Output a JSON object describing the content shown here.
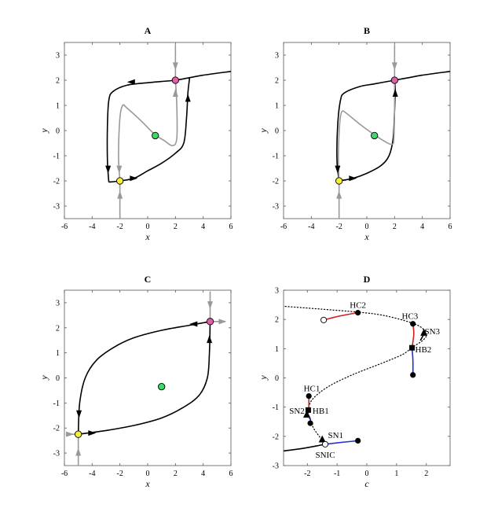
{
  "chart_data": [
    {
      "id": "A",
      "type": "line",
      "title": "A",
      "xlabel": "x",
      "ylabel": "y",
      "xlim": [
        -6,
        6
      ],
      "ylim": [
        -3.5,
        3.5
      ],
      "xticks": [
        "-6",
        "-4",
        "-2",
        "0",
        "2",
        "4",
        "6"
      ],
      "yticks": [
        "-3",
        "-2",
        "-1",
        "0",
        "1",
        "2",
        "3"
      ],
      "series": [
        {
          "color": "#000000",
          "points": [
            [
              -2.8,
              -2.05
            ],
            [
              -2.9,
              -1.2
            ],
            [
              -2.9,
              0.2
            ],
            [
              -2.8,
              1.2
            ],
            [
              -2.5,
              1.55
            ],
            [
              -1.5,
              1.8
            ],
            [
              0,
              1.9
            ],
            [
              1,
              1.95
            ],
            [
              2,
              2.0
            ],
            [
              3,
              2.1
            ],
            [
              4,
              2.2
            ],
            [
              6,
              2.35
            ]
          ]
        },
        {
          "color": "#000000",
          "points": [
            [
              -2.8,
              -2.05
            ],
            [
              -2.0,
              -2.0
            ],
            [
              -1,
              -1.9
            ],
            [
              0,
              -1.6
            ],
            [
              1,
              -1.3
            ],
            [
              2,
              -0.9
            ],
            [
              2.6,
              -0.5
            ],
            [
              2.8,
              0.5
            ],
            [
              2.9,
              1.5
            ],
            [
              3.0,
              2.0
            ],
            [
              3.0,
              2.1
            ]
          ]
        },
        {
          "color": "#999999",
          "points": [
            [
              -2.0,
              -2.0
            ],
            [
              -2.1,
              -1.0
            ],
            [
              -2.0,
              0.5
            ],
            [
              -1.8,
              1.0
            ],
            [
              -1.5,
              0.9
            ],
            [
              -0.5,
              0.4
            ],
            [
              0.5,
              -0.15
            ],
            [
              1.2,
              -0.4
            ],
            [
              1.8,
              -0.6
            ],
            [
              2.1,
              -0.3
            ],
            [
              2.1,
              1.0
            ],
            [
              2.0,
              2.0
            ]
          ]
        },
        {
          "color": "#999999",
          "points": [
            [
              2.0,
              3.4
            ],
            [
              2.0,
              2.0
            ]
          ]
        },
        {
          "color": "#999999",
          "points": [
            [
              -2.0,
              -3.5
            ],
            [
              -2.0,
              -2.0
            ]
          ]
        }
      ],
      "arrows": [
        {
          "x": -1.2,
          "y": 1.93,
          "dir": "left",
          "color": "#000000"
        },
        {
          "x": -2.85,
          "y": -1.55,
          "dir": "down",
          "color": "#000000"
        },
        {
          "x": -1.0,
          "y": -1.9,
          "dir": "right",
          "color": "#000000"
        },
        {
          "x": 2.9,
          "y": 1.3,
          "dir": "up",
          "color": "#000000"
        },
        {
          "x": -2.05,
          "y": -1.55,
          "dir": "down",
          "color": "#999999"
        },
        {
          "x": 2.0,
          "y": 1.5,
          "dir": "up",
          "color": "#999999"
        },
        {
          "x": 2.0,
          "y": 2.55,
          "dir": "down",
          "color": "#999999"
        },
        {
          "x": -2.0,
          "y": -2.55,
          "dir": "up",
          "color": "#999999"
        }
      ],
      "points": [
        {
          "x": 2.0,
          "y": 2.0,
          "color": "#e060a8"
        },
        {
          "x": -2.0,
          "y": -2.0,
          "color": "#f5ee3a"
        },
        {
          "x": 0.55,
          "y": -0.2,
          "color": "#3cd86a"
        }
      ]
    },
    {
      "id": "B",
      "type": "line",
      "title": "B",
      "xlabel": "x",
      "ylabel": "y",
      "xlim": [
        -6,
        6
      ],
      "ylim": [
        -3.5,
        3.5
      ],
      "xticks": [
        "-6",
        "-4",
        "-2",
        "0",
        "2",
        "4",
        "6"
      ],
      "yticks": [
        "-3",
        "-2",
        "-1",
        "0",
        "1",
        "2",
        "3"
      ],
      "series": [
        {
          "color": "#000000",
          "points": [
            [
              -2.0,
              -2.0
            ],
            [
              -2.15,
              -1.2
            ],
            [
              -2.1,
              0.2
            ],
            [
              -1.9,
              1.2
            ],
            [
              -1.6,
              1.5
            ],
            [
              -0.5,
              1.75
            ],
            [
              0.5,
              1.85
            ],
            [
              2.0,
              2.0
            ],
            [
              3,
              2.1
            ],
            [
              4,
              2.2
            ],
            [
              6,
              2.35
            ]
          ]
        },
        {
          "color": "#000000",
          "points": [
            [
              -2.0,
              -2.0
            ],
            [
              -1,
              -1.9
            ],
            [
              0,
              -1.7
            ],
            [
              1,
              -1.4
            ],
            [
              1.6,
              -1.0
            ],
            [
              1.9,
              -0.3
            ],
            [
              2.0,
              0.8
            ],
            [
              2.05,
              1.6
            ],
            [
              2.0,
              2.0
            ]
          ]
        },
        {
          "color": "#999999",
          "points": [
            [
              -2.0,
              -2.0
            ],
            [
              -2.05,
              -1.0
            ],
            [
              -1.95,
              0.3
            ],
            [
              -1.8,
              0.75
            ],
            [
              -1.5,
              0.7
            ],
            [
              -0.5,
              0.25
            ],
            [
              0.5,
              -0.15
            ],
            [
              1.2,
              -0.4
            ],
            [
              1.8,
              -0.55
            ],
            [
              1.95,
              -0.3
            ],
            [
              2.0,
              1.0
            ],
            [
              2.0,
              2.0
            ]
          ]
        },
        {
          "color": "#999999",
          "points": [
            [
              2.0,
              3.4
            ],
            [
              2.0,
              2.0
            ]
          ]
        },
        {
          "color": "#999999",
          "points": [
            [
              -2.0,
              -3.5
            ],
            [
              -2.0,
              -2.0
            ]
          ]
        }
      ],
      "arrows": [
        {
          "x": -2.1,
          "y": -1.55,
          "dir": "down",
          "color": "#000000"
        },
        {
          "x": -1.0,
          "y": -1.9,
          "dir": "right",
          "color": "#000000"
        },
        {
          "x": 2.05,
          "y": 1.5,
          "dir": "up",
          "color": "#000000"
        },
        {
          "x": 2.0,
          "y": 2.55,
          "dir": "down",
          "color": "#999999"
        },
        {
          "x": -2.0,
          "y": -2.55,
          "dir": "up",
          "color": "#999999"
        }
      ],
      "points": [
        {
          "x": 2.0,
          "y": 2.0,
          "color": "#e060a8"
        },
        {
          "x": -2.0,
          "y": -2.0,
          "color": "#f5ee3a"
        },
        {
          "x": 0.55,
          "y": -0.2,
          "color": "#3cd86a"
        }
      ]
    },
    {
      "id": "C",
      "type": "line",
      "title": "C",
      "xlabel": "x",
      "ylabel": "y",
      "xlim": [
        -6,
        6
      ],
      "ylim": [
        -3.5,
        3.5
      ],
      "xticks": [
        "-6",
        "-4",
        "-2",
        "0",
        "2",
        "4",
        "6"
      ],
      "yticks": [
        "-3",
        "-2",
        "-1",
        "0",
        "1",
        "2",
        "3"
      ],
      "series": [
        {
          "color": "#000000",
          "points": [
            [
              4.5,
              2.25
            ],
            [
              3,
              2.1
            ],
            [
              1,
              1.9
            ],
            [
              -1,
              1.6
            ],
            [
              -2.5,
              1.2
            ],
            [
              -3.7,
              0.7
            ],
            [
              -4.5,
              0
            ],
            [
              -4.9,
              -1.0
            ],
            [
              -5.0,
              -2.25
            ]
          ]
        },
        {
          "color": "#000000",
          "points": [
            [
              -5.0,
              -2.25
            ],
            [
              -3,
              -2.1
            ],
            [
              -1,
              -1.9
            ],
            [
              1,
              -1.6
            ],
            [
              2.5,
              -1.2
            ],
            [
              3.7,
              -0.7
            ],
            [
              4.3,
              0
            ],
            [
              4.45,
              1.0
            ],
            [
              4.5,
              2.25
            ]
          ]
        },
        {
          "color": "#999999",
          "points": [
            [
              4.5,
              3.45
            ],
            [
              4.5,
              2.25
            ]
          ]
        },
        {
          "color": "#999999",
          "points": [
            [
              4.5,
              2.25
            ],
            [
              5.6,
              2.25
            ]
          ]
        },
        {
          "color": "#999999",
          "points": [
            [
              -5.0,
              -3.5
            ],
            [
              -5.0,
              -2.25
            ]
          ]
        },
        {
          "color": "#999999",
          "points": [
            [
              -5.9,
              -2.25
            ],
            [
              -5.0,
              -2.25
            ]
          ]
        }
      ],
      "arrows": [
        {
          "x": 3.3,
          "y": 2.15,
          "dir": "left",
          "color": "#000000"
        },
        {
          "x": -4.95,
          "y": -1.45,
          "dir": "down",
          "color": "#000000"
        },
        {
          "x": -4.0,
          "y": -2.2,
          "dir": "right",
          "color": "#000000"
        },
        {
          "x": 4.45,
          "y": 1.55,
          "dir": "up",
          "color": "#000000"
        },
        {
          "x": 4.5,
          "y": 2.9,
          "dir": "down",
          "color": "#999999"
        },
        {
          "x": 5.4,
          "y": 2.25,
          "dir": "right",
          "color": "#999999"
        },
        {
          "x": -5.0,
          "y": -2.95,
          "dir": "up",
          "color": "#999999"
        },
        {
          "x": -5.6,
          "y": -2.25,
          "dir": "right",
          "color": "#999999"
        }
      ],
      "points": [
        {
          "x": 4.5,
          "y": 2.25,
          "color": "#e060a8"
        },
        {
          "x": -5.0,
          "y": -2.25,
          "color": "#f5ee3a"
        },
        {
          "x": 1.0,
          "y": -0.35,
          "color": "#3cd86a"
        }
      ]
    },
    {
      "id": "D",
      "type": "line",
      "title": "D",
      "xlabel": "c",
      "ylabel": "y",
      "xlim": [
        -2.8,
        2.8
      ],
      "ylim": [
        -3,
        3
      ],
      "xticks": [
        "-2",
        "-1",
        "0",
        "1",
        "2"
      ],
      "yticks": [
        "-3",
        "-2",
        "-1",
        "0",
        "1",
        "2",
        "3"
      ],
      "xtick_values": [
        -2,
        -1,
        0,
        1,
        2
      ],
      "series": [
        {
          "color": "#000000",
          "style": "solid",
          "points": [
            [
              -2.8,
              -2.5
            ],
            [
              -2.2,
              -2.42
            ],
            [
              -1.7,
              -2.33
            ],
            [
              -1.4,
              -2.27
            ]
          ]
        },
        {
          "color": "#000000",
          "style": "dotted",
          "points": [
            [
              -1.4,
              -2.27
            ],
            [
              -1.6,
              -2.0
            ],
            [
              -1.8,
              -1.7
            ],
            [
              -1.95,
              -1.3
            ],
            [
              -1.95,
              -1.0
            ],
            [
              -1.8,
              -0.7
            ],
            [
              -1.3,
              -0.3
            ],
            [
              -0.5,
              0.1
            ],
            [
              0.5,
              0.5
            ],
            [
              1.2,
              0.8
            ],
            [
              1.5,
              1.03
            ]
          ]
        },
        {
          "color": "#000000",
          "style": "dotted",
          "points": [
            [
              1.5,
              1.03
            ],
            [
              1.9,
              1.3
            ],
            [
              2.0,
              1.5
            ],
            [
              1.8,
              1.75
            ],
            [
              1.3,
              1.95
            ],
            [
              0.5,
              2.15
            ],
            [
              -0.3,
              2.25
            ],
            [
              -1.5,
              2.35
            ],
            [
              -2.8,
              2.45
            ]
          ]
        },
        {
          "color": "#000000",
          "style": "solid",
          "points": [
            [
              1.8,
              1.28
            ],
            [
              1.95,
              1.55
            ]
          ]
        },
        {
          "color": "#d42020",
          "style": "solid",
          "points": [
            [
              -1.45,
              1.98
            ],
            [
              -0.9,
              2.12
            ],
            [
              -0.3,
              2.23
            ]
          ]
        },
        {
          "color": "#d42020",
          "style": "solid",
          "points": [
            [
              1.55,
              1.85
            ],
            [
              1.58,
              1.5
            ],
            [
              1.52,
              1.03
            ]
          ]
        },
        {
          "color": "#d42020",
          "style": "solid",
          "points": [
            [
              -1.95,
              -0.62
            ],
            [
              -1.95,
              -1.0
            ],
            [
              -1.98,
              -1.2
            ]
          ]
        },
        {
          "color": "#2030d0",
          "style": "solid",
          "points": [
            [
              1.52,
              1.03
            ],
            [
              1.55,
              0.6
            ],
            [
              1.55,
              0.1
            ]
          ]
        },
        {
          "color": "#2030d0",
          "style": "solid",
          "points": [
            [
              -2.0,
              -1.22
            ],
            [
              -1.9,
              -1.4
            ],
            [
              -1.9,
              -1.55
            ]
          ]
        },
        {
          "color": "#2030d0",
          "style": "solid",
          "points": [
            [
              -1.4,
              -2.27
            ],
            [
              -0.8,
              -2.2
            ],
            [
              -0.3,
              -2.15
            ]
          ]
        }
      ],
      "markers": [
        {
          "x": -0.3,
          "y": 2.23,
          "shape": "filled-circle"
        },
        {
          "x": -1.45,
          "y": 1.98,
          "shape": "open-circle"
        },
        {
          "x": 1.55,
          "y": 1.85,
          "shape": "filled-circle"
        },
        {
          "x": 1.52,
          "y": 1.03,
          "shape": "square"
        },
        {
          "x": 1.55,
          "y": 0.1,
          "shape": "filled-circle"
        },
        {
          "x": 1.92,
          "y": 1.55,
          "shape": "triangle"
        },
        {
          "x": -1.95,
          "y": -0.62,
          "shape": "filled-circle"
        },
        {
          "x": -1.97,
          "y": -1.1,
          "shape": "square"
        },
        {
          "x": -2.02,
          "y": -1.25,
          "shape": "triangle"
        },
        {
          "x": -1.9,
          "y": -1.55,
          "shape": "filled-circle"
        },
        {
          "x": -1.5,
          "y": -2.1,
          "shape": "triangle"
        },
        {
          "x": -1.4,
          "y": -2.27,
          "shape": "open-circle"
        },
        {
          "x": -0.3,
          "y": -2.15,
          "shape": "filled-circle"
        }
      ],
      "annotations": [
        {
          "text": "HC2",
          "x": -0.3,
          "y": 2.5
        },
        {
          "text": "HC3",
          "x": 1.45,
          "y": 2.12
        },
        {
          "text": "SN3",
          "x": 2.2,
          "y": 1.6
        },
        {
          "text": "HB2",
          "x": 1.9,
          "y": 0.98
        },
        {
          "text": "HC1",
          "x": -1.85,
          "y": -0.35
        },
        {
          "text": "SN2",
          "x": -2.35,
          "y": -1.12
        },
        {
          "text": "HB1",
          "x": -1.55,
          "y": -1.12
        },
        {
          "text": "SN1",
          "x": -1.05,
          "y": -1.95
        },
        {
          "text": "SNIC",
          "x": -1.4,
          "y": -2.62
        }
      ]
    }
  ]
}
